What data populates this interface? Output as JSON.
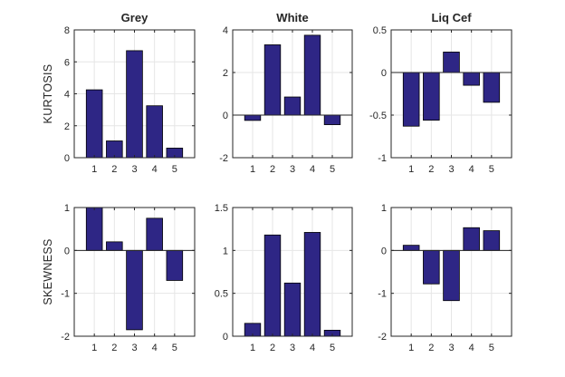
{
  "figure": {
    "bar_color": "#2e2685",
    "bar_edge_color": "#000000",
    "grid_color": "#e6e6e6",
    "axis_color": "#262626",
    "row_labels": [
      "KURTOSIS",
      "SKEWNESS"
    ]
  },
  "chart_data": [
    {
      "type": "bar",
      "title": "Grey",
      "ylabel": "KURTOSIS",
      "categories": [
        "1",
        "2",
        "3",
        "4",
        "5"
      ],
      "values": [
        4.25,
        1.05,
        6.7,
        3.25,
        0.6
      ],
      "ylim": [
        0,
        8
      ],
      "yticks": [
        0,
        2,
        4,
        6,
        8
      ],
      "grid": true
    },
    {
      "type": "bar",
      "title": "White",
      "ylabel": "",
      "categories": [
        "1",
        "2",
        "3",
        "4",
        "5"
      ],
      "values": [
        -0.25,
        3.3,
        0.85,
        3.75,
        -0.45
      ],
      "ylim": [
        -2,
        4
      ],
      "yticks": [
        -2,
        0,
        2,
        4
      ],
      "grid": true
    },
    {
      "type": "bar",
      "title": "Liq Cef",
      "ylabel": "",
      "categories": [
        "1",
        "2",
        "3",
        "4",
        "5"
      ],
      "values": [
        -0.63,
        -0.56,
        0.24,
        -0.15,
        -0.35
      ],
      "ylim": [
        -1,
        0.5
      ],
      "yticks": [
        -1,
        -0.5,
        0,
        0.5
      ],
      "grid": true
    },
    {
      "type": "bar",
      "title": "",
      "ylabel": "SKEWNESS",
      "categories": [
        "1",
        "2",
        "3",
        "4",
        "5"
      ],
      "values": [
        1.0,
        0.2,
        -1.85,
        0.75,
        -0.7
      ],
      "ylim": [
        -2,
        1
      ],
      "yticks": [
        -2,
        -1,
        0,
        1
      ],
      "grid": true
    },
    {
      "type": "bar",
      "title": "",
      "ylabel": "",
      "categories": [
        "1",
        "2",
        "3",
        "4",
        "5"
      ],
      "values": [
        0.15,
        1.18,
        0.62,
        1.21,
        0.07
      ],
      "ylim": [
        0,
        1.5
      ],
      "yticks": [
        0,
        0.5,
        1,
        1.5
      ],
      "grid": true
    },
    {
      "type": "bar",
      "title": "",
      "ylabel": "",
      "categories": [
        "1",
        "2",
        "3",
        "4",
        "5"
      ],
      "values": [
        0.12,
        -0.78,
        -1.17,
        0.53,
        0.46
      ],
      "ylim": [
        -2,
        1
      ],
      "yticks": [
        -2,
        -1,
        0,
        1
      ],
      "grid": true
    }
  ]
}
